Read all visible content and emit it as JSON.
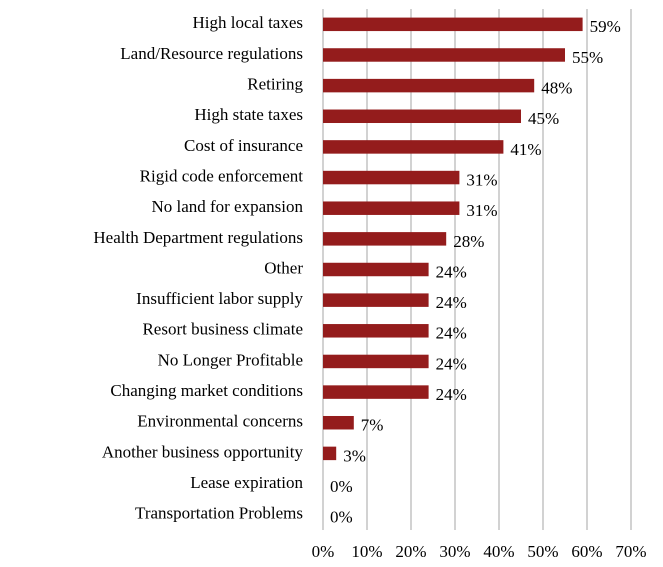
{
  "chart_data": {
    "type": "bar",
    "orientation": "horizontal",
    "categories": [
      "High local taxes",
      "Land/Resource regulations",
      "Retiring",
      "High state taxes",
      "Cost of insurance",
      "Rigid code enforcement",
      "No land for expansion",
      "Health Department regulations",
      "Other",
      "Insufficient labor supply",
      "Resort business climate",
      "No Longer Profitable",
      "Changing market conditions",
      "Environmental concerns",
      "Another business opportunity",
      "Lease expiration",
      "Transportation Problems"
    ],
    "values": [
      59,
      55,
      48,
      45,
      41,
      31,
      31,
      28,
      24,
      24,
      24,
      24,
      24,
      7,
      3,
      0,
      0
    ],
    "value_labels": [
      "59%",
      "55%",
      "48%",
      "45%",
      "41%",
      "31%",
      "31%",
      "28%",
      "24%",
      "24%",
      "24%",
      "24%",
      "24%",
      "7%",
      "3%",
      "0%",
      "0%"
    ],
    "color": "#941c1c",
    "xlim": [
      0,
      70
    ],
    "xticks": [
      {
        "value": 0,
        "label": "0%"
      },
      {
        "value": 10,
        "label": "10%"
      },
      {
        "value": 20,
        "label": "20%"
      },
      {
        "value": 30,
        "label": "30%"
      },
      {
        "value": 40,
        "label": "40%"
      },
      {
        "value": 50,
        "label": "50%"
      },
      {
        "value": 60,
        "label": "60%"
      },
      {
        "value": 70,
        "label": "70%"
      }
    ],
    "grid": true
  }
}
